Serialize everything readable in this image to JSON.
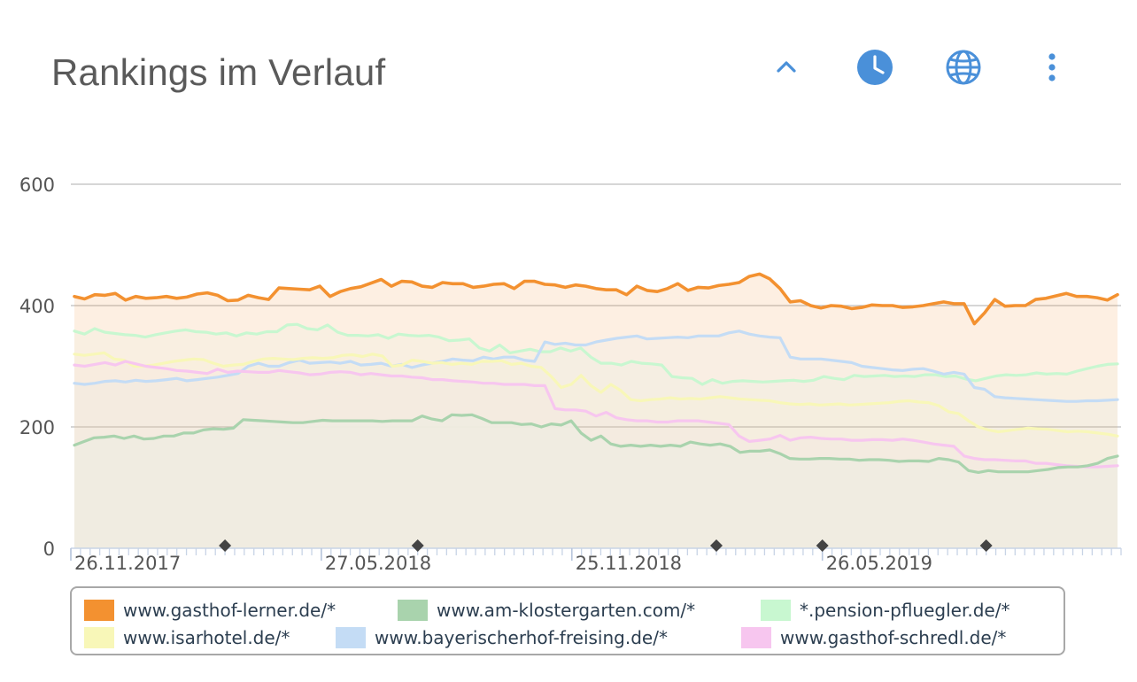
{
  "header": {
    "title": "Rankings im Verlauf",
    "icons": [
      "chevron-up-icon",
      "clock-icon",
      "globe-icon",
      "more-vertical-icon"
    ]
  },
  "colors": {
    "accent": "#4a90d9",
    "grid": "#bdbdbd",
    "axis_text": "#555555",
    "area_fill": "#efece0",
    "marker": "#444444"
  },
  "chart_data": {
    "type": "line",
    "title": "Rankings im Verlauf",
    "xlabel": "",
    "ylabel": "",
    "ylim": [
      0,
      600
    ],
    "yticks": [
      0,
      200,
      400,
      600
    ],
    "x_tick_labels": [
      "26.11.2017",
      "27.05.2018",
      "25.11.2018",
      "26.05.2019"
    ],
    "x_range": [
      "2017-11-26",
      "2019-12-29"
    ],
    "grid": true,
    "legend_position": "bottom",
    "markers": [
      "2018-03-18",
      "2018-08-05",
      "2019-03-10",
      "2019-05-26",
      "2019-09-22"
    ],
    "series": [
      {
        "name": "www.gasthof-lerner.de/*",
        "color": "#f39130",
        "values": [
          415,
          411,
          418,
          417,
          420,
          409,
          415,
          412,
          413,
          415,
          412,
          414,
          419,
          421,
          417,
          408,
          409,
          417,
          413,
          410,
          429,
          428,
          427,
          426,
          432,
          415,
          423,
          428,
          431,
          437,
          443,
          432,
          440,
          439,
          432,
          430,
          438,
          436,
          436,
          430,
          432,
          435,
          436,
          428,
          440,
          440,
          435,
          434,
          430,
          434,
          432,
          428,
          426,
          426,
          418,
          432,
          425,
          423,
          428,
          436,
          425,
          430,
          429,
          433,
          435,
          438,
          448,
          452,
          444,
          428,
          406,
          408,
          400,
          396,
          400,
          399,
          395,
          397,
          401,
          400,
          400,
          397,
          398,
          400,
          403,
          406,
          403,
          403,
          370,
          388,
          410,
          399,
          400,
          400,
          410,
          412,
          416,
          420,
          415,
          415,
          413,
          409,
          418
        ]
      },
      {
        "name": "www.am-klostergarten.com/*",
        "color": "#a9d3ad",
        "values": [
          170,
          176,
          182,
          183,
          185,
          181,
          185,
          180,
          181,
          185,
          185,
          190,
          190,
          195,
          197,
          196,
          198,
          212,
          211,
          210,
          209,
          208,
          207,
          207,
          209,
          211,
          210,
          210,
          210,
          210,
          210,
          209,
          210,
          210,
          210,
          218,
          213,
          210,
          220,
          219,
          220,
          214,
          207,
          207,
          207,
          204,
          205,
          200,
          205,
          203,
          210,
          190,
          178,
          185,
          172,
          168,
          170,
          168,
          170,
          168,
          170,
          168,
          175,
          172,
          170,
          172,
          168,
          158,
          160,
          160,
          162,
          156,
          148,
          147,
          147,
          148,
          148,
          147,
          147,
          145,
          146,
          146,
          145,
          143,
          144,
          144,
          143,
          148,
          146,
          142,
          128,
          125,
          128,
          126,
          126,
          126,
          126,
          128,
          130,
          133,
          134,
          134,
          136,
          140,
          148,
          152
        ]
      },
      {
        "name": "*.pension-pfluegler.de/*",
        "color": "#c8f7d0",
        "values": [
          358,
          353,
          362,
          356,
          354,
          352,
          351,
          348,
          352,
          355,
          358,
          360,
          357,
          356,
          353,
          355,
          350,
          355,
          353,
          357,
          357,
          368,
          369,
          362,
          360,
          368,
          356,
          351,
          351,
          350,
          352,
          346,
          353,
          351,
          350,
          351,
          348,
          342,
          343,
          345,
          330,
          325,
          335,
          322,
          325,
          328,
          324,
          324,
          330,
          325,
          330,
          315,
          305,
          305,
          302,
          308,
          305,
          304,
          302,
          283,
          281,
          280,
          270,
          278,
          272,
          275,
          276,
          275,
          274,
          275,
          276,
          277,
          275,
          277,
          283,
          280,
          278,
          285,
          283,
          284,
          285,
          283,
          284,
          283,
          286,
          286,
          283,
          284,
          279,
          276,
          280,
          284,
          286,
          285,
          286,
          289,
          287,
          288,
          287,
          292,
          296,
          300,
          303,
          304
        ]
      },
      {
        "name": "www.isarhotel.de/*",
        "color": "#f8f7b8",
        "values": [
          320,
          318,
          320,
          322,
          312,
          310,
          300,
          300,
          302,
          305,
          308,
          310,
          312,
          311,
          305,
          300,
          302,
          303,
          308,
          312,
          313,
          312,
          311,
          313,
          314,
          313,
          314,
          318,
          319,
          316,
          320,
          317,
          300,
          302,
          310,
          308,
          305,
          306,
          303,
          305,
          303,
          308,
          308,
          309,
          303,
          305,
          300,
          298,
          283,
          265,
          270,
          285,
          268,
          257,
          270,
          260,
          245,
          243,
          245,
          246,
          248,
          246,
          247,
          246,
          248,
          250,
          248,
          246,
          245,
          244,
          243,
          240,
          238,
          237,
          238,
          236,
          237,
          238,
          236,
          237,
          238,
          239,
          240,
          242,
          243,
          241,
          240,
          235,
          225,
          222,
          210,
          200,
          195,
          192,
          194,
          196,
          198,
          197,
          196,
          194,
          192,
          193,
          192,
          190,
          188,
          185
        ]
      },
      {
        "name": "www.bayerischerhof-freising.de/*",
        "color": "#c4dcf5",
        "values": [
          272,
          270,
          272,
          275,
          276,
          274,
          277,
          275,
          276,
          278,
          280,
          276,
          278,
          280,
          282,
          285,
          288,
          300,
          305,
          300,
          300,
          306,
          310,
          305,
          306,
          307,
          305,
          308,
          302,
          303,
          305,
          300,
          303,
          298,
          302,
          305,
          308,
          312,
          310,
          309,
          315,
          312,
          315,
          315,
          310,
          308,
          340,
          336,
          338,
          335,
          335,
          340,
          343,
          346,
          348,
          350,
          345,
          346,
          347,
          348,
          347,
          350,
          350,
          350,
          355,
          358,
          353,
          350,
          348,
          347,
          315,
          312,
          312,
          312,
          310,
          308,
          306,
          300,
          298,
          296,
          294,
          293,
          295,
          296,
          292,
          287,
          290,
          287,
          265,
          262,
          250,
          248,
          247,
          246,
          245,
          244,
          243,
          242,
          242,
          243,
          243,
          244,
          245
        ]
      },
      {
        "name": "www.gasthof-schredl.de/*",
        "color": "#f7c6ef",
        "values": [
          302,
          300,
          303,
          306,
          302,
          308,
          304,
          300,
          298,
          296,
          293,
          292,
          290,
          288,
          295,
          290,
          292,
          291,
          290,
          290,
          293,
          291,
          289,
          286,
          287,
          290,
          291,
          290,
          286,
          288,
          286,
          284,
          284,
          282,
          281,
          278,
          278,
          276,
          275,
          274,
          272,
          272,
          270,
          270,
          270,
          268,
          268,
          230,
          228,
          228,
          226,
          218,
          224,
          215,
          212,
          210,
          210,
          208,
          208,
          210,
          210,
          210,
          208,
          206,
          204,
          185,
          176,
          178,
          180,
          186,
          178,
          182,
          183,
          181,
          180,
          180,
          178,
          178,
          179,
          179,
          178,
          180,
          178,
          175,
          172,
          170,
          168,
          152,
          148,
          146,
          146,
          145,
          144,
          144,
          140,
          140,
          138,
          136,
          135,
          134,
          134,
          135,
          136
        ]
      }
    ]
  },
  "legend": {
    "items": [
      {
        "label": "www.gasthof-lerner.de/*",
        "color": "#f39130"
      },
      {
        "label": "www.am-klostergarten.com/*",
        "color": "#a9d3ad"
      },
      {
        "label": "*.pension-pfluegler.de/*",
        "color": "#c8f7d0"
      },
      {
        "label": "www.isarhotel.de/*",
        "color": "#f8f7b8"
      },
      {
        "label": "www.bayerischerhof-freising.de/*",
        "color": "#c4dcf5"
      },
      {
        "label": "www.gasthof-schredl.de/*",
        "color": "#f7c6ef"
      }
    ]
  }
}
